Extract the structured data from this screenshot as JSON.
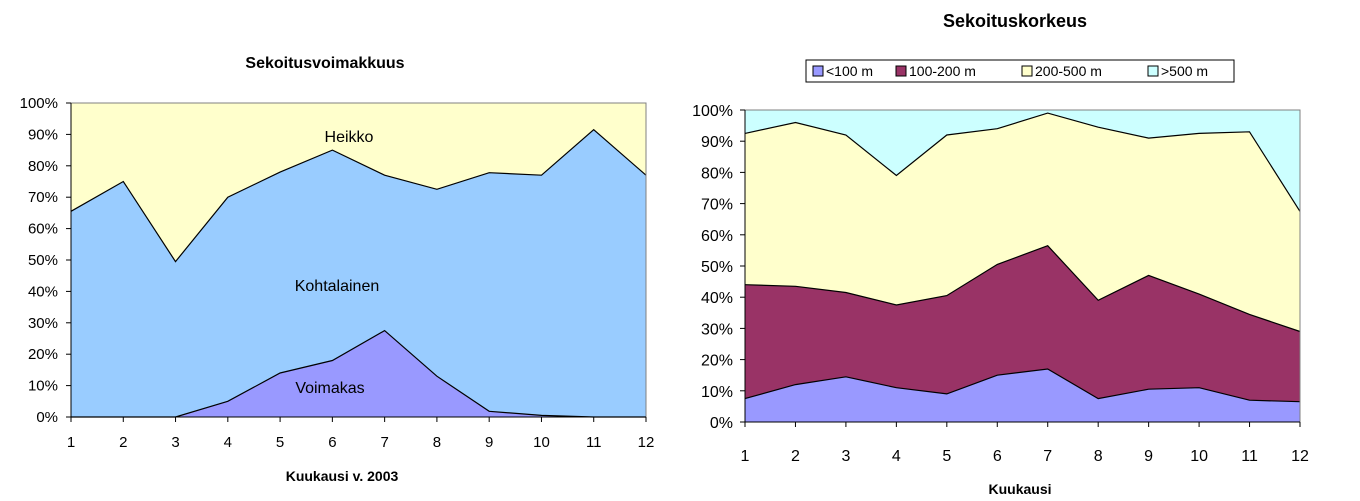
{
  "chart_data": [
    {
      "type": "area",
      "stacked": true,
      "title": "Sekoitusvoimakkuus",
      "xlabel": "Kuukausi v. 2003",
      "ylabel": "",
      "x": [
        1,
        2,
        3,
        4,
        5,
        6,
        7,
        8,
        9,
        10,
        11,
        12
      ],
      "ylim": [
        0,
        100
      ],
      "yticks": [
        "0%",
        "10%",
        "20%",
        "30%",
        "40%",
        "50%",
        "60%",
        "70%",
        "80%",
        "90%",
        "100%"
      ],
      "grid": false,
      "legend": "none",
      "series": [
        {
          "name": "Voimakas",
          "color": "#9999ff",
          "values": [
            0,
            0,
            0,
            5,
            14,
            18,
            27.5,
            13,
            1.8,
            0.5,
            0,
            0
          ]
        },
        {
          "name": "Kohtalainen",
          "color": "#99ccff",
          "values": [
            65.5,
            75,
            49.5,
            65,
            64,
            67,
            49.5,
            59.5,
            76,
            76.5,
            91.5,
            77
          ]
        },
        {
          "name": "Heikko",
          "color": "#ffffcc",
          "values": [
            34.5,
            25,
            50.5,
            30,
            22,
            15,
            23,
            27.5,
            22.2,
            23,
            8.5,
            23
          ]
        }
      ]
    },
    {
      "type": "area",
      "stacked": true,
      "title": "Sekoituskorkeus",
      "xlabel": "Kuukausi",
      "ylabel": "",
      "x": [
        1,
        2,
        3,
        4,
        5,
        6,
        7,
        8,
        9,
        10,
        11,
        12
      ],
      "ylim": [
        0,
        100
      ],
      "yticks": [
        "0%",
        "10%",
        "20%",
        "30%",
        "40%",
        "50%",
        "60%",
        "70%",
        "80%",
        "90%",
        "100%"
      ],
      "grid": false,
      "legend": "top",
      "series": [
        {
          "name": "<100 m",
          "color": "#9999ff",
          "values": [
            7.5,
            12,
            14.5,
            11,
            9,
            15,
            17,
            7.5,
            10.5,
            11,
            7,
            6.5
          ]
        },
        {
          "name": "100-200 m",
          "color": "#993366",
          "values": [
            36.5,
            31.5,
            27,
            26.5,
            31.5,
            35.5,
            39.5,
            31.5,
            36.5,
            30,
            27.5,
            22.5
          ]
        },
        {
          "name": "200-500 m",
          "color": "#ffffcc",
          "values": [
            48.5,
            52.5,
            50.5,
            41.5,
            51.5,
            43.5,
            42.5,
            55.5,
            44,
            51.5,
            58.5,
            38.5
          ]
        },
        {
          "name": ">500 m",
          "color": "#ccffff",
          "values": [
            7.5,
            4,
            8,
            21,
            8,
            6,
            1,
            5.5,
            9,
            7.5,
            7,
            32.5
          ]
        }
      ]
    }
  ]
}
